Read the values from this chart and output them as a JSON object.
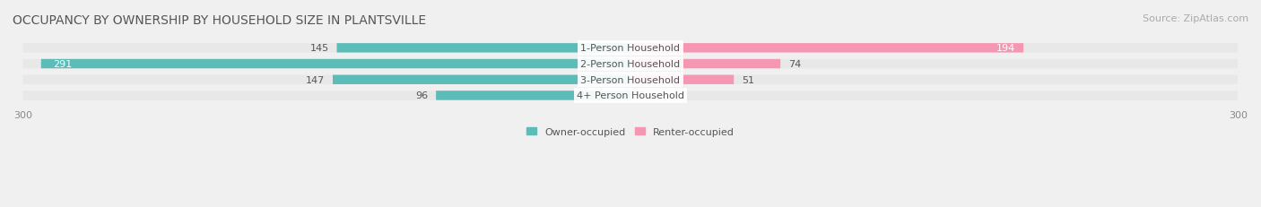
{
  "title": "OCCUPANCY BY OWNERSHIP BY HOUSEHOLD SIZE IN PLANTSVILLE",
  "source": "Source: ZipAtlas.com",
  "categories": [
    "1-Person Household",
    "2-Person Household",
    "3-Person Household",
    "4+ Person Household"
  ],
  "owner_values": [
    145,
    291,
    147,
    96
  ],
  "renter_values": [
    194,
    74,
    51,
    0
  ],
  "owner_color": "#5bbcb8",
  "renter_color": "#f597b2",
  "owner_label": "Owner-occupied",
  "renter_label": "Renter-occupied",
  "xlim": 300,
  "background_color": "#f0f0f0",
  "title_fontsize": 10,
  "source_fontsize": 8,
  "label_fontsize": 8,
  "axis_tick_fontsize": 8,
  "category_fontsize": 8
}
